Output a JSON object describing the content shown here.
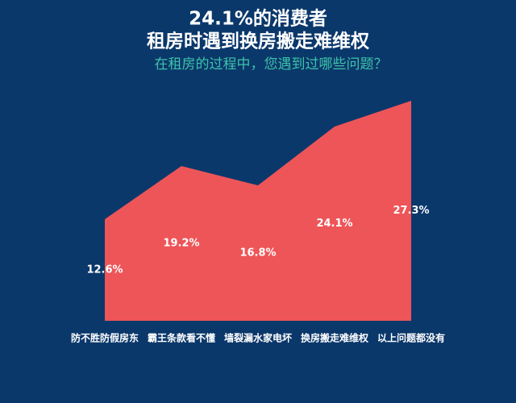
{
  "chart_data": {
    "type": "area",
    "title": "24.1%的消费者",
    "title_line2": "租房时遇到换房搬走难维权",
    "subtitle": "在租房的过程中，您遇到过哪些问题？",
    "categories": [
      "防不胜防假房东",
      "霸王条款看不懂",
      "墙裂漏水家电坏",
      "换房搬走难维权",
      "以上问题都没有"
    ],
    "values": [
      12.6,
      19.2,
      16.8,
      24.1,
      27.3
    ],
    "value_labels": [
      "12.6%",
      "19.2%",
      "16.8%",
      "24.1%",
      "27.3%"
    ],
    "color": "#ee5558"
  }
}
